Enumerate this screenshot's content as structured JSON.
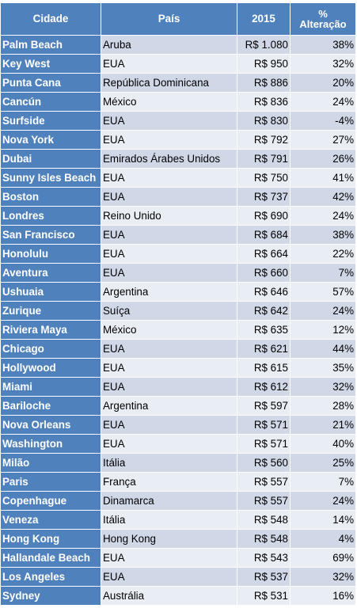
{
  "table": {
    "headers": {
      "city": "Cidade",
      "country": "País",
      "year": "2015",
      "change_symbol": "%",
      "change_label": "Alteração"
    },
    "rows": [
      {
        "city": "Palm Beach",
        "country": "Aruba",
        "price": "R$ 1.080",
        "change": "38%"
      },
      {
        "city": "Key West",
        "country": "EUA",
        "price": "R$ 950",
        "change": "32%"
      },
      {
        "city": "Punta Cana",
        "country": "República Dominicana",
        "price": "R$ 886",
        "change": "20%"
      },
      {
        "city": "Cancún",
        "country": "México",
        "price": "R$ 836",
        "change": "24%"
      },
      {
        "city": "Surfside",
        "country": "EUA",
        "price": "R$ 830",
        "change": "-4%"
      },
      {
        "city": "Nova York",
        "country": "EUA",
        "price": "R$ 792",
        "change": "27%"
      },
      {
        "city": "Dubai",
        "country": "Emirados Árabes Unidos",
        "price": "R$ 791",
        "change": "26%"
      },
      {
        "city": "Sunny Isles Beach",
        "country": "EUA",
        "price": "R$ 750",
        "change": "41%"
      },
      {
        "city": "Boston",
        "country": "EUA",
        "price": "R$ 737",
        "change": "42%"
      },
      {
        "city": "Londres",
        "country": "Reino Unido",
        "price": "R$ 690",
        "change": "24%"
      },
      {
        "city": "San Francisco",
        "country": "EUA",
        "price": "R$ 684",
        "change": "38%"
      },
      {
        "city": "Honolulu",
        "country": "EUA",
        "price": "R$ 664",
        "change": "22%"
      },
      {
        "city": "Aventura",
        "country": "EUA",
        "price": "R$ 660",
        "change": "7%"
      },
      {
        "city": "Ushuaia",
        "country": "Argentina",
        "price": "R$ 646",
        "change": "57%"
      },
      {
        "city": "Zurique",
        "country": "Suíça",
        "price": "R$ 642",
        "change": "24%"
      },
      {
        "city": "Riviera Maya",
        "country": "México",
        "price": "R$ 635",
        "change": "12%"
      },
      {
        "city": "Chicago",
        "country": "EUA",
        "price": "R$ 621",
        "change": "44%"
      },
      {
        "city": "Hollywood",
        "country": "EUA",
        "price": "R$ 615",
        "change": "35%"
      },
      {
        "city": "Miami",
        "country": "EUA",
        "price": "R$ 612",
        "change": "32%"
      },
      {
        "city": "Bariloche",
        "country": "Argentina",
        "price": "R$ 597",
        "change": "28%"
      },
      {
        "city": "Nova Orleans",
        "country": "EUA",
        "price": "R$ 571",
        "change": "21%"
      },
      {
        "city": "Washington",
        "country": "EUA",
        "price": "R$ 571",
        "change": "40%"
      },
      {
        "city": "Milão",
        "country": "Itália",
        "price": "R$ 560",
        "change": "25%"
      },
      {
        "city": "Paris",
        "country": "França",
        "price": "R$ 557",
        "change": "7%"
      },
      {
        "city": "Copenhague",
        "country": "Dinamarca",
        "price": "R$ 557",
        "change": "24%"
      },
      {
        "city": "Veneza",
        "country": "Itália",
        "price": "R$ 548",
        "change": "14%"
      },
      {
        "city": "Hong Kong",
        "country": "Hong Kong",
        "price": "R$ 548",
        "change": "4%"
      },
      {
        "city": "Hallandale Beach",
        "country": "EUA",
        "price": "R$ 543",
        "change": "69%"
      },
      {
        "city": "Los Angeles",
        "country": "EUA",
        "price": "R$ 537",
        "change": "32%"
      },
      {
        "city": "Sydney",
        "country": "Austrália",
        "price": "R$ 531",
        "change": "16%"
      }
    ]
  },
  "colors": {
    "header_bg": "#4f81bd",
    "header_text": "#ffffff",
    "row_odd_bg": "#d0d8e8",
    "row_even_bg": "#e9edf4",
    "border": "#ffffff"
  }
}
